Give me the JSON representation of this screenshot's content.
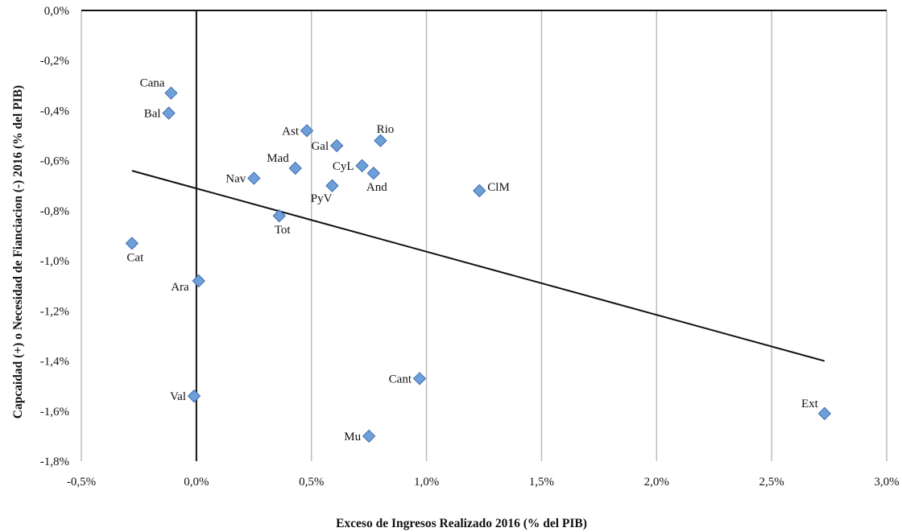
{
  "chart_data": {
    "type": "scatter",
    "title": "",
    "xlabel": "Exceso de Ingresos Realizado 2016 (% del PIB)",
    "ylabel": "Capcaidad (+) o Necesidad de Fianciacion (-)  2016 (% del PIB)",
    "xlim": [
      -0.5,
      3.0
    ],
    "ylim": [
      -1.8,
      0.0
    ],
    "x_ticks": [
      -0.5,
      0.0,
      0.5,
      1.0,
      1.5,
      2.0,
      2.5,
      3.0
    ],
    "x_tick_labels": [
      "-0,5%",
      "0,0%",
      "0,5%",
      "1,0%",
      "1,5%",
      "2,0%",
      "2,5%",
      "3,0%"
    ],
    "y_ticks": [
      0.0,
      -0.2,
      -0.4,
      -0.6,
      -0.8,
      -1.0,
      -1.2,
      -1.4,
      -1.6,
      -1.8
    ],
    "y_tick_labels": [
      "0,0%",
      "-0,2%",
      "-0,4%",
      "-0,6%",
      "-0,8%",
      "-1,0%",
      "-1,2%",
      "-1,4%",
      "-1,6%",
      "-1,8%"
    ],
    "grid": "vertical",
    "marker_color": "#6f9fd8",
    "marker_edge": "#3f6fb0",
    "points": [
      {
        "label": "Cana",
        "x": -0.11,
        "y": -0.33,
        "pos": "upper-left"
      },
      {
        "label": "Bal",
        "x": -0.12,
        "y": -0.41,
        "pos": "left"
      },
      {
        "label": "Cat",
        "x": -0.28,
        "y": -0.93,
        "pos": "below"
      },
      {
        "label": "Ara",
        "x": 0.01,
        "y": -1.08,
        "pos": "left-below"
      },
      {
        "label": "Val",
        "x": -0.01,
        "y": -1.54,
        "pos": "left"
      },
      {
        "label": "Nav",
        "x": 0.25,
        "y": -0.67,
        "pos": "left"
      },
      {
        "label": "Mad",
        "x": 0.43,
        "y": -0.63,
        "pos": "upper-left"
      },
      {
        "label": "Ast",
        "x": 0.48,
        "y": -0.48,
        "pos": "left"
      },
      {
        "label": "Gal",
        "x": 0.61,
        "y": -0.54,
        "pos": "left"
      },
      {
        "label": "Rio",
        "x": 0.8,
        "y": -0.52,
        "pos": "above"
      },
      {
        "label": "CyL",
        "x": 0.72,
        "y": -0.62,
        "pos": "left"
      },
      {
        "label": "And",
        "x": 0.77,
        "y": -0.65,
        "pos": "below"
      },
      {
        "label": "PyV",
        "x": 0.59,
        "y": -0.7,
        "pos": "below-left"
      },
      {
        "label": "Tot",
        "x": 0.36,
        "y": -0.82,
        "pos": "below"
      },
      {
        "label": "ClM",
        "x": 1.23,
        "y": -0.72,
        "pos": "right"
      },
      {
        "label": "Cant",
        "x": 0.97,
        "y": -1.47,
        "pos": "left"
      },
      {
        "label": "Mu",
        "x": 0.75,
        "y": -1.7,
        "pos": "left"
      },
      {
        "label": "Ext",
        "x": 2.73,
        "y": -1.61,
        "pos": "upper-left"
      }
    ],
    "trendline": {
      "x": [
        -0.28,
        2.73
      ],
      "y": [
        -0.64,
        -1.4
      ]
    }
  }
}
